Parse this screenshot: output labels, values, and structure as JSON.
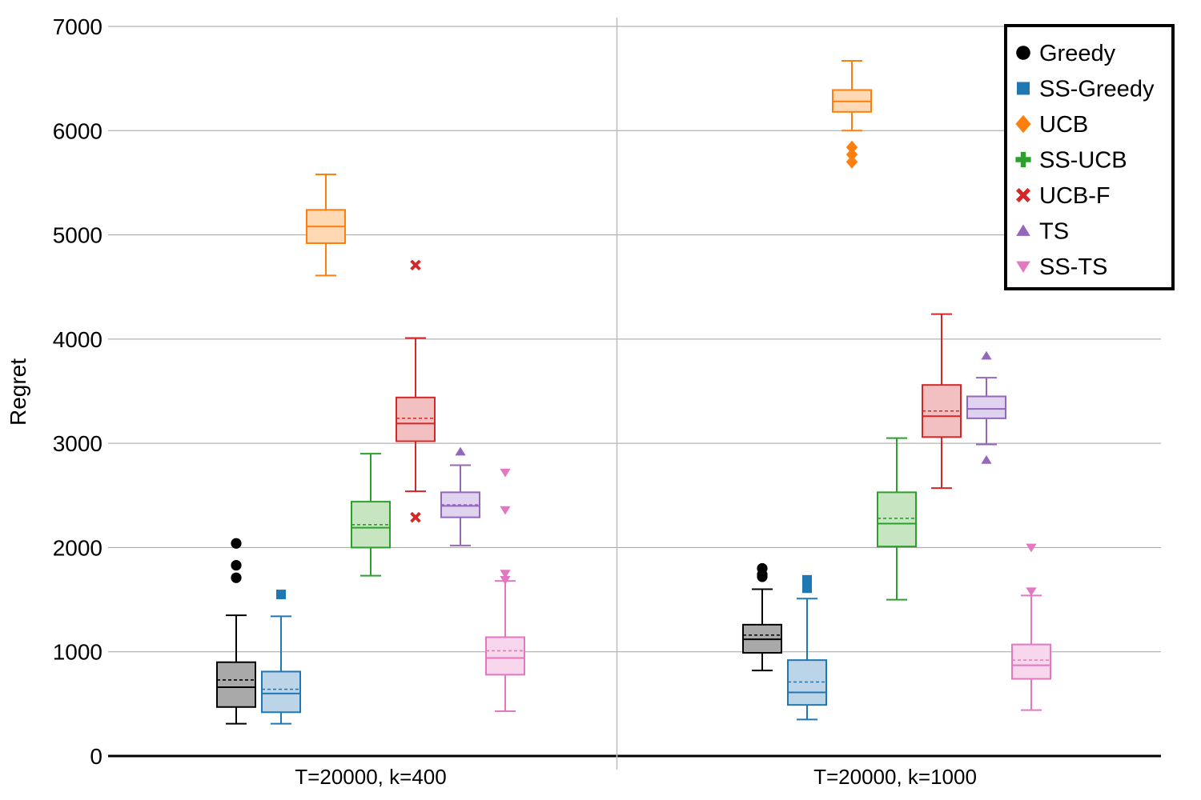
{
  "chart_data": {
    "type": "box",
    "title": "",
    "xlabel": "",
    "ylabel": "Regret",
    "ylim": [
      0,
      7000
    ],
    "yticks": [
      0,
      1000,
      2000,
      3000,
      4000,
      5000,
      6000,
      7000
    ],
    "grid": "horizontal",
    "legend": "top-right",
    "categories": [
      "T=20000, k=400",
      "T=20000, k=1000"
    ],
    "series": [
      {
        "name": "Greedy",
        "color": "#000000",
        "fill": "#a9a9a9",
        "marker": "circle",
        "boxes": [
          {
            "whisker_low": 310,
            "q1": 470,
            "median": 660,
            "mean": 730,
            "q3": 900,
            "whisker_high": 1350,
            "outliers": [
              1710,
              1830,
              2040
            ]
          },
          {
            "whisker_low": 820,
            "q1": 990,
            "median": 1120,
            "mean": 1160,
            "q3": 1260,
            "whisker_high": 1600,
            "outliers": [
              1720,
              1740,
              1800
            ]
          }
        ]
      },
      {
        "name": "SS-Greedy",
        "color": "#1f77b4",
        "fill": "#bcd4e8",
        "marker": "square",
        "boxes": [
          {
            "whisker_low": 310,
            "q1": 420,
            "median": 600,
            "mean": 640,
            "q3": 810,
            "whisker_high": 1340,
            "outliers": [
              1550
            ]
          },
          {
            "whisker_low": 350,
            "q1": 490,
            "median": 610,
            "mean": 710,
            "q3": 920,
            "whisker_high": 1510,
            "outliers": [
              1610,
              1690
            ]
          }
        ]
      },
      {
        "name": "UCB",
        "color": "#ff7f0e",
        "fill": "#ffd8b4",
        "marker": "diamond",
        "boxes": [
          {
            "whisker_low": 4610,
            "q1": 4920,
            "median": 5080,
            "mean": 5080,
            "q3": 5240,
            "whisker_high": 5580,
            "outliers": []
          },
          {
            "whisker_low": 6000,
            "q1": 6180,
            "median": 6280,
            "mean": 6280,
            "q3": 6390,
            "whisker_high": 6670,
            "outliers": [
              5700,
              5770,
              5840
            ]
          }
        ]
      },
      {
        "name": "SS-UCB",
        "color": "#2ca02c",
        "fill": "#c6e5c0",
        "marker": "plus",
        "boxes": [
          {
            "whisker_low": 1730,
            "q1": 2000,
            "median": 2190,
            "mean": 2220,
            "q3": 2440,
            "whisker_high": 2900,
            "outliers": []
          },
          {
            "whisker_low": 1500,
            "q1": 2010,
            "median": 2230,
            "mean": 2280,
            "q3": 2530,
            "whisker_high": 3050,
            "outliers": []
          }
        ]
      },
      {
        "name": "UCB-F",
        "color": "#d62728",
        "fill": "#f2c0c0",
        "marker": "x",
        "boxes": [
          {
            "whisker_low": 2540,
            "q1": 3020,
            "median": 3190,
            "mean": 3240,
            "q3": 3440,
            "whisker_high": 4010,
            "outliers": [
              2290,
              4710
            ]
          },
          {
            "whisker_low": 2570,
            "q1": 3060,
            "median": 3260,
            "mean": 3310,
            "q3": 3560,
            "whisker_high": 4240,
            "outliers": []
          }
        ]
      },
      {
        "name": "TS",
        "color": "#9467bd",
        "fill": "#e0d3ef",
        "marker": "triangle-up",
        "boxes": [
          {
            "whisker_low": 2020,
            "q1": 2290,
            "median": 2400,
            "mean": 2410,
            "q3": 2530,
            "whisker_high": 2790,
            "outliers": [
              2920
            ]
          },
          {
            "whisker_low": 2990,
            "q1": 3240,
            "median": 3330,
            "mean": 3330,
            "q3": 3450,
            "whisker_high": 3630,
            "outliers": [
              2840,
              3840
            ]
          }
        ]
      },
      {
        "name": "SS-TS",
        "color": "#e377c2",
        "fill": "#f8d6ec",
        "marker": "triangle-down",
        "boxes": [
          {
            "whisker_low": 430,
            "q1": 780,
            "median": 940,
            "mean": 1010,
            "q3": 1140,
            "whisker_high": 1680,
            "outliers": [
              1690,
              1750,
              2360,
              2720
            ]
          },
          {
            "whisker_low": 440,
            "q1": 740,
            "median": 870,
            "mean": 920,
            "q3": 1070,
            "whisker_high": 1540,
            "outliers": [
              1580,
              2000
            ]
          }
        ]
      }
    ]
  }
}
